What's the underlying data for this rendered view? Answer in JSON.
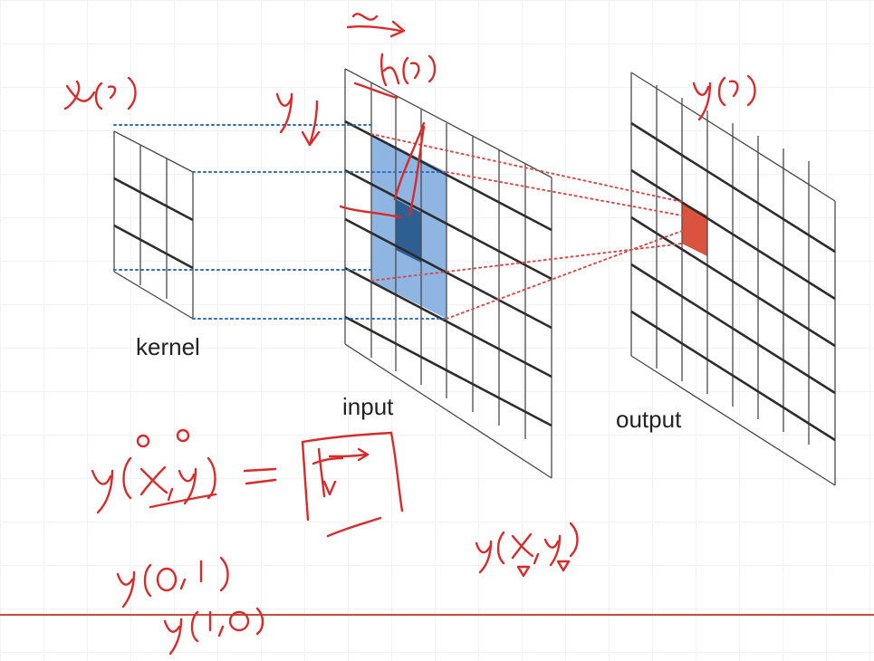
{
  "labels": {
    "kernel": "kernel",
    "input": "input",
    "output": "output"
  },
  "handwriting": {
    "kernel_label": "x(t)",
    "input_label": "h(t)",
    "output_label": "y(t)",
    "x_axis": "x",
    "y_axis": "y",
    "equation_lhs": "y(x,y)",
    "equation_lhs_marks": "0 0",
    "equation_eq": "=",
    "example_left": "y(x,y)",
    "list_1": "y(0,1)",
    "list_2": "y(1,0)"
  },
  "colors": {
    "highlight_light": "#8fb5e3",
    "highlight_dark": "#2e5f93",
    "output_cell": "#d9533f",
    "ink_red": "#d92b2b",
    "guide_blue": "#2f6db8",
    "guide_red": "#d94f4f"
  }
}
